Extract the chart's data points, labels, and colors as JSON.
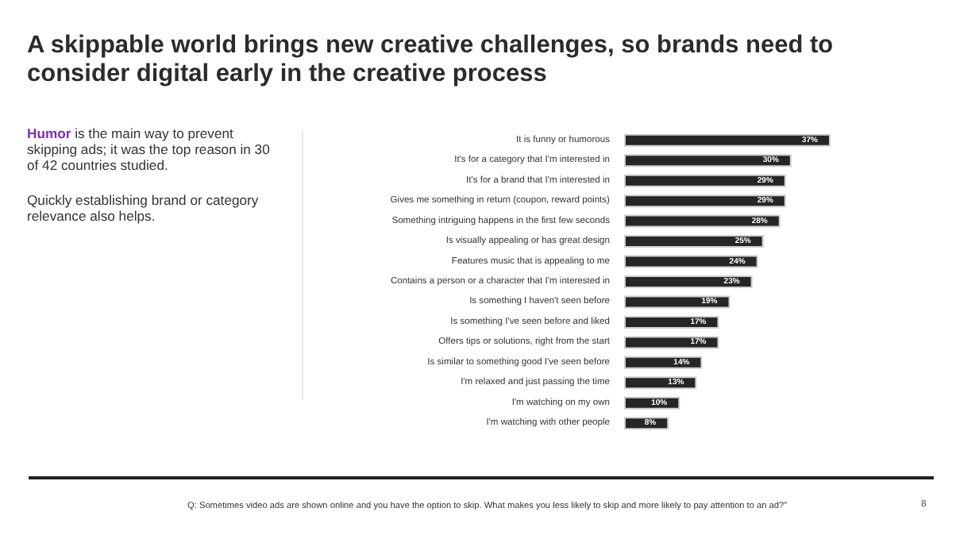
{
  "chart_data": {
    "type": "bar",
    "orientation": "horizontal",
    "title": "A skippable world brings new creative challenges, so brands need to consider digital early in the creative process",
    "annotations": [
      "Humor is the main way to prevent skipping ads; it was the top reason in 30 of 42 countries studied.",
      "Quickly establishing brand or category relevance also helps.",
      "Q:  Sometimes video ads are shown online and you have the option to skip. What makes you less likely to skip and more likely to pay attention to an ad?\"",
      "8"
    ],
    "categories": [
      "It is funny or humorous",
      "It's for a category that I'm interested in",
      "It's for a brand that I'm interested in",
      "Gives me something in return (coupon, reward points)",
      "Something intriguing happens in the first few seconds",
      "Is visually appealing or has great design",
      "Features music that is appealing to me",
      "Contains a person or a character that I'm interested in",
      "Is something I haven't seen before",
      "Is something I've seen before and liked",
      "Offers tips or solutions, right from the start",
      "Is similar to something good I've seen before",
      "I'm relaxed and just passing the time",
      "I'm watching on my own",
      "I'm watching with other people"
    ],
    "values": [
      37,
      30,
      29,
      29,
      28,
      25,
      24,
      23,
      19,
      17,
      17,
      14,
      13,
      10,
      8
    ],
    "value_labels": [
      "37%",
      "30%",
      "29%",
      "29%",
      "28%",
      "25%",
      "24%",
      "23%",
      "19%",
      "17%",
      "17%",
      "14%",
      "13%",
      "10%",
      "8%"
    ],
    "color": "#262626"
  }
}
